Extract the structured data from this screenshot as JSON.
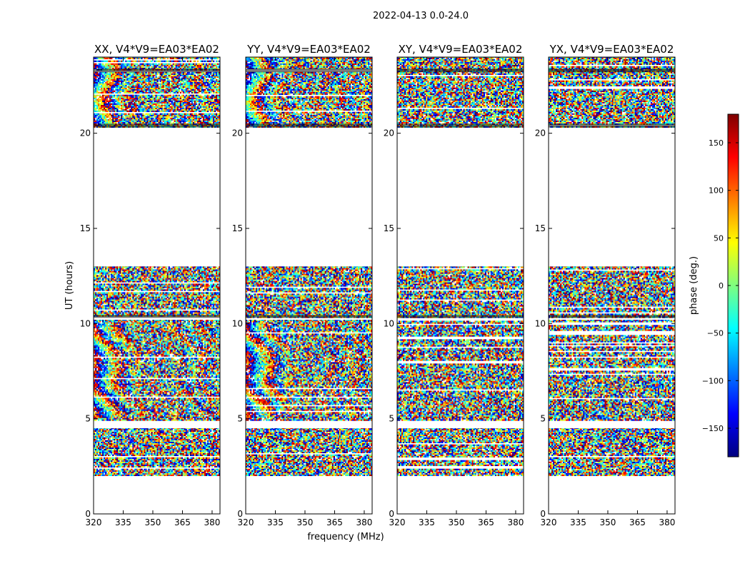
{
  "chart_data": {
    "type": "heatmap",
    "title": "2022-04-13 0.0-24.0",
    "xlabel": "frequency (MHz)",
    "ylabel": "UT (hours)",
    "xlim": [
      320,
      384
    ],
    "ylim": [
      0,
      24
    ],
    "xticks": [
      320,
      335,
      350,
      365,
      380
    ],
    "yticks": [
      0,
      5,
      10,
      15,
      20
    ],
    "panels": [
      {
        "title": "XX, V4*V9=EA03*EA02",
        "coherent": true
      },
      {
        "title": "YY, V4*V9=EA03*EA02",
        "coherent": true
      },
      {
        "title": "XY, V4*V9=EA03*EA02",
        "coherent": false
      },
      {
        "title": "YX, V4*V9=EA03*EA02",
        "coherent": false
      }
    ],
    "data_blocks_ut": [
      [
        2.0,
        4.5
      ],
      [
        4.9,
        10.2
      ],
      [
        10.3,
        13.0
      ],
      [
        20.3,
        24.0
      ]
    ],
    "flagged_gaps_ut": [
      [
        0.0,
        2.0
      ],
      [
        13.0,
        20.3
      ]
    ],
    "colorbar": {
      "label": "phase (deg.)",
      "range": [
        -180,
        180
      ],
      "ticks": [
        150,
        100,
        50,
        0,
        -50,
        -100,
        -150
      ],
      "tick_labels": [
        "150",
        "100",
        "50",
        "0",
        "−50",
        "−100",
        "−150"
      ],
      "colormap": [
        "#00007f",
        "#0000ff",
        "#007fff",
        "#00ffff",
        "#7fff7f",
        "#ffff00",
        "#ff7f00",
        "#ff0000",
        "#7f0000"
      ]
    }
  }
}
